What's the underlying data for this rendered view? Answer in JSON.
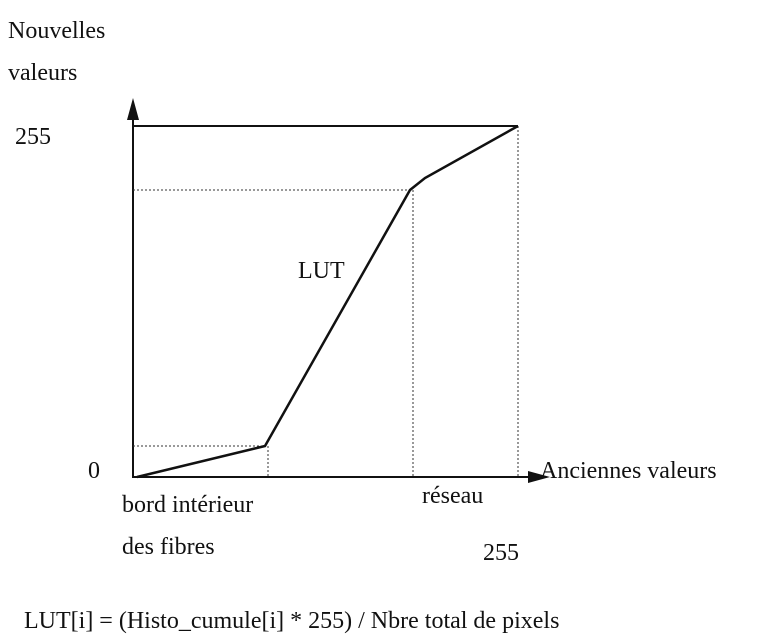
{
  "axis_labels": {
    "y_title_line1": "Nouvelles",
    "y_title_line2": "valeurs",
    "y_max": "255",
    "origin": "0",
    "x_title": "Anciennes valeurs",
    "x_max": "255"
  },
  "curve_label": "LUT",
  "annotations": {
    "fibres_line1": "bord intérieur",
    "fibres_line2": "des fibres",
    "reseau": "réseau"
  },
  "formula": "LUT[i] = (Histo_cumule[i] * 255) / Nbre total de pixels"
}
